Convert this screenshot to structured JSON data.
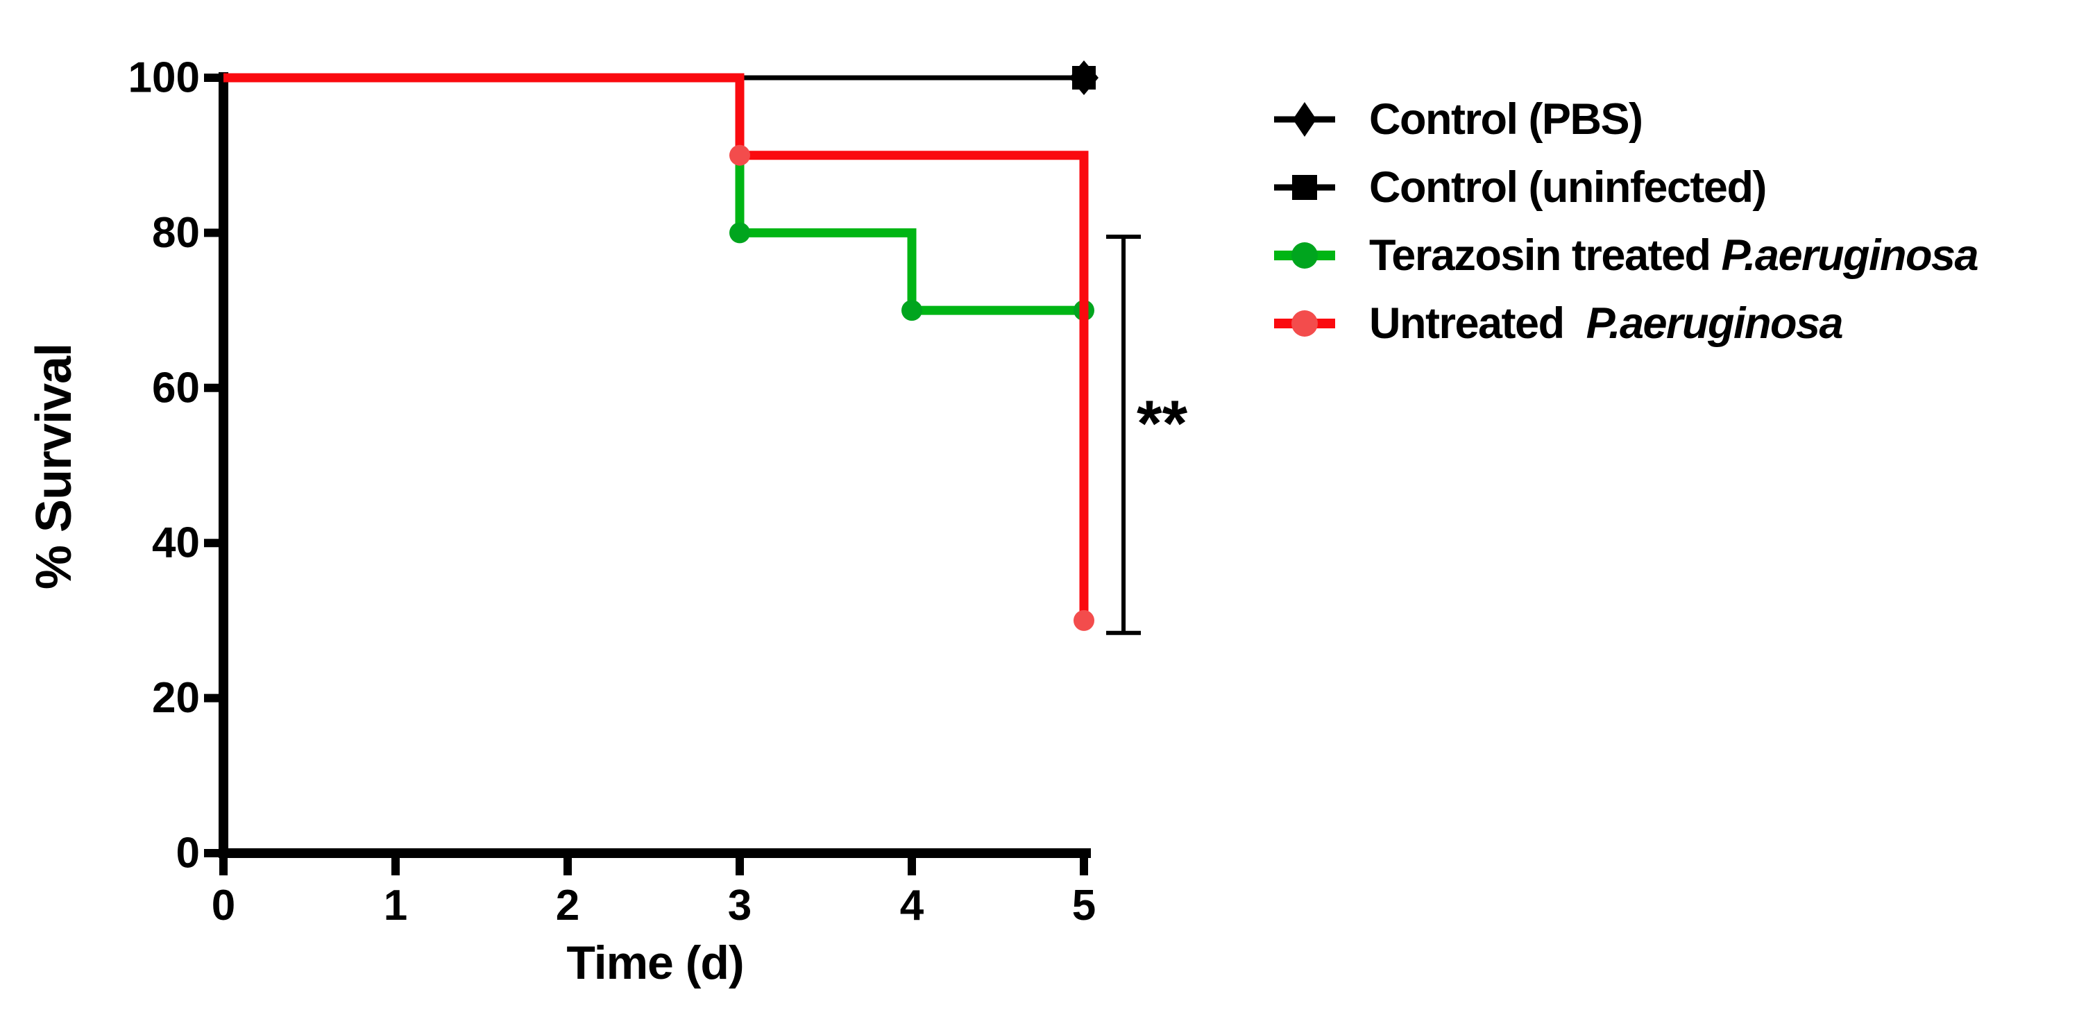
{
  "figure": {
    "background": "#FFFFFF"
  },
  "chart_data": {
    "type": "line",
    "subtype": "kaplan_meier_step_survival",
    "title": "",
    "xlabel": "Time (d)",
    "ylabel": "% Survival",
    "xlim": [
      0,
      5
    ],
    "ylim": [
      0,
      100
    ],
    "x_ticks": [
      0,
      1,
      2,
      3,
      4,
      5
    ],
    "y_ticks": [
      0,
      20,
      40,
      60,
      80,
      100
    ],
    "grid": false,
    "legend_position": "right",
    "series": [
      {
        "name": "Control (PBS)",
        "color": "#000000",
        "marker": "diamond",
        "marker_color": "#000000",
        "line_weight": "thin",
        "points": [
          [
            0,
            100
          ],
          [
            5,
            100
          ]
        ],
        "marker_points": [
          [
            5,
            100
          ]
        ]
      },
      {
        "name": "Control (uninfected)",
        "color": "#000000",
        "marker": "square",
        "marker_color": "#000000",
        "line_weight": "thin",
        "points": [
          [
            0,
            100
          ],
          [
            5,
            100
          ]
        ],
        "marker_points": [
          [
            5,
            100
          ]
        ]
      },
      {
        "name": "Terazosin treated P.aeruginosa",
        "color": "#00B514",
        "marker": "circle",
        "marker_color": "#00A51E",
        "line_weight": "thick",
        "points": [
          [
            0,
            100
          ],
          [
            3,
            100
          ],
          [
            3,
            80
          ],
          [
            4,
            80
          ],
          [
            4,
            70
          ],
          [
            5,
            70
          ]
        ],
        "marker_points": [
          [
            3,
            80
          ],
          [
            4,
            70
          ],
          [
            5,
            70
          ]
        ]
      },
      {
        "name": "Untreated P.aeruginosa",
        "color": "#FA0A0F",
        "marker": "circle",
        "marker_color": "#F34C4C",
        "line_weight": "thick",
        "points": [
          [
            0,
            100
          ],
          [
            3,
            100
          ],
          [
            3,
            90
          ],
          [
            5,
            90
          ],
          [
            5,
            30
          ]
        ],
        "marker_points": [
          [
            3,
            90
          ],
          [
            5,
            30
          ]
        ]
      }
    ],
    "significance": {
      "text": "**",
      "x_day": 5.23,
      "y_top_pct": 79.5,
      "y_bottom_pct": 28.4
    }
  },
  "axes": {
    "x_label": "Time (d)",
    "y_label": "% Survival"
  },
  "legend": {
    "items": [
      {
        "label": "Control (PBS)",
        "species": "",
        "marker": "diamond",
        "line_color": "#000000",
        "marker_color": "#000000"
      },
      {
        "label": "Control (uninfected)",
        "species": "",
        "marker": "square",
        "line_color": "#000000",
        "marker_color": "#000000"
      },
      {
        "label": "Terazosin treated ",
        "species": "P.aeruginosa",
        "marker": "circle",
        "line_color": "#00B514",
        "marker_color": "#00A51E"
      },
      {
        "label": "Untreated  ",
        "species": "P.aeruginosa",
        "marker": "circle",
        "line_color": "#FA0A0F",
        "marker_color": "#F34C4C"
      }
    ]
  },
  "annotation": {
    "significance_label": "**"
  }
}
